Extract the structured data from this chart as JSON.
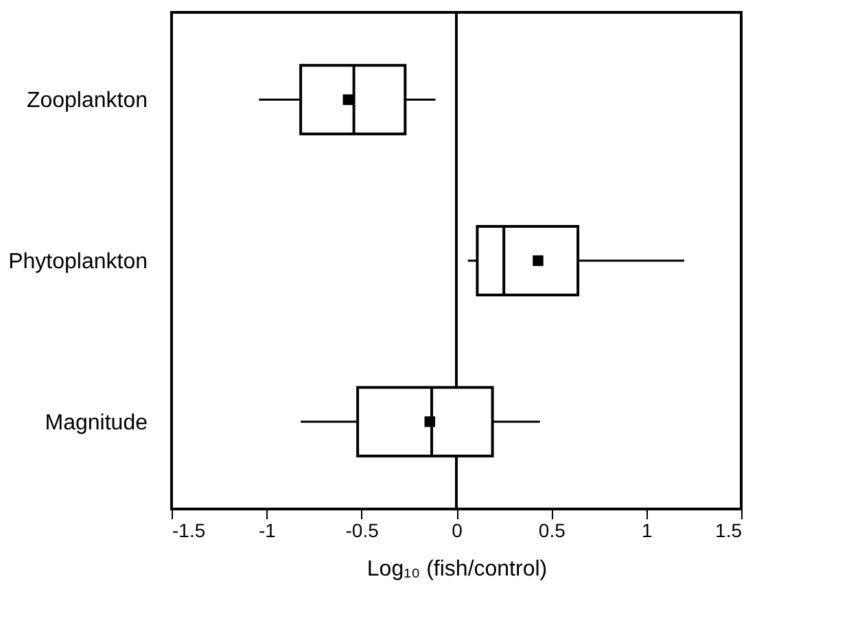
{
  "chart_data": {
    "type": "box",
    "orientation": "horizontal",
    "xlabel": "Log₁₀ (fish/control)",
    "categories": [
      "Zooplankton",
      "Phytoplankton",
      "Magnitude"
    ],
    "boxes": [
      {
        "low": -1.04,
        "q1": -0.82,
        "median": -0.54,
        "q3": -0.27,
        "high": -0.11,
        "mean": -0.57
      },
      {
        "low": 0.06,
        "q1": 0.11,
        "median": 0.25,
        "q3": 0.64,
        "high": 1.2,
        "mean": 0.43
      },
      {
        "low": -0.82,
        "q1": -0.52,
        "median": -0.13,
        "q3": 0.19,
        "high": 0.44,
        "mean": -0.14
      }
    ],
    "xlim": [
      -1.5,
      1.5
    ],
    "xticks": [
      -1.5,
      -1,
      -0.5,
      0,
      0.5,
      1,
      1.5
    ],
    "ref_lines": [
      {
        "axis": "x",
        "value": 0,
        "color": "#000000"
      }
    ],
    "grid": false,
    "marker": "square"
  }
}
